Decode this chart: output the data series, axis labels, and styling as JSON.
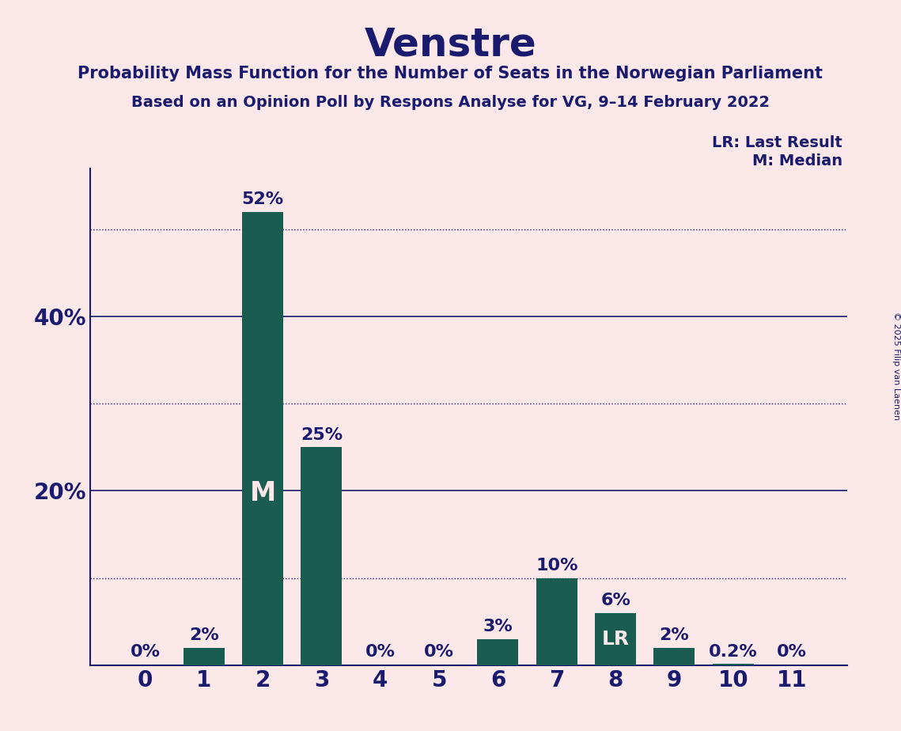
{
  "title": "Venstre",
  "subtitle1": "Probability Mass Function for the Number of Seats in the Norwegian Parliament",
  "subtitle2": "Based on an Opinion Poll by Respons Analyse for VG, 9–14 February 2022",
  "copyright": "© 2025 Filip van Laenen",
  "categories": [
    0,
    1,
    2,
    3,
    4,
    5,
    6,
    7,
    8,
    9,
    10,
    11
  ],
  "values": [
    0,
    2,
    52,
    25,
    0,
    0,
    3,
    10,
    6,
    2,
    0.2,
    0
  ],
  "bar_color": "#1a5c50",
  "background_color": "#fce8e8",
  "title_color": "#1a1a6e",
  "label_color": "#1a1a6e",
  "axis_color": "#1a1a6e",
  "median_bar": 2,
  "lr_bar": 8,
  "median_label": "M",
  "lr_label": "LR",
  "marker_text_color": "#fce8e8",
  "ylim": [
    0,
    57
  ],
  "solid_gridlines": [
    20,
    40
  ],
  "dotted_gridlines": [
    10,
    30,
    50
  ],
  "ylabel_ticks": [
    20,
    40
  ],
  "legend_lr": "LR: Last Result",
  "legend_m": "M: Median"
}
